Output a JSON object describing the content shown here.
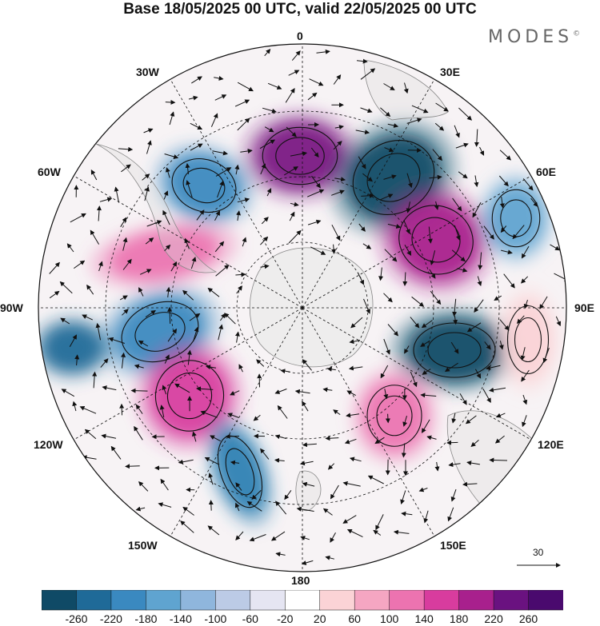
{
  "title": "Base 18/05/2025 00 UTC, valid 22/05/2025 00 UTC",
  "brand": "MODES",
  "brand_mark": "©",
  "longitude_labels": [
    "0",
    "30E",
    "60E",
    "90E",
    "120E",
    "150E",
    "180",
    "150W",
    "120W",
    "90W",
    "60W",
    "30W"
  ],
  "reference_vector": "30",
  "colorbar": {
    "ticks": [
      "-260",
      "-220",
      "-180",
      "-140",
      "-100",
      "-60",
      "-20",
      "20",
      "60",
      "100",
      "140",
      "180",
      "220",
      "260"
    ],
    "colors": [
      "#0f4a66",
      "#1f6a98",
      "#3a89c0",
      "#5fa4d0",
      "#8fb6dd",
      "#bccbe6",
      "#e5e5f2",
      "#ffffff",
      "#fbd3d6",
      "#f5a6c2",
      "#ec73b0",
      "#d83c9e",
      "#a8208d",
      "#6a1280",
      "#4a0a6e"
    ]
  },
  "anomalies": [
    {
      "name": "c1",
      "value": 230,
      "color": "#7a1a82"
    },
    {
      "name": "c2",
      "value": -250,
      "color": "#0f4a66"
    },
    {
      "name": "c3",
      "value": 200,
      "color": "#a8208d"
    },
    {
      "name": "c4",
      "value": -150,
      "color": "#3a89c0"
    },
    {
      "name": "c5",
      "value": -250,
      "color": "#0f4a66"
    },
    {
      "name": "c6",
      "value": 120,
      "color": "#ec73b0"
    },
    {
      "name": "c7",
      "value": -100,
      "color": "#5fa4d0"
    },
    {
      "name": "c8",
      "value": 60,
      "color": "#fbd3d6"
    },
    {
      "name": "c9",
      "value": -160,
      "color": "#3a89c0"
    },
    {
      "name": "c10",
      "value": 200,
      "color": "#d83c9e"
    },
    {
      "name": "c11",
      "value": -170,
      "color": "#2f7fb3"
    },
    {
      "name": "c12",
      "value": 120,
      "color": "#ec73b0"
    },
    {
      "name": "c13",
      "value": -200,
      "color": "#1f6a98"
    }
  ]
}
